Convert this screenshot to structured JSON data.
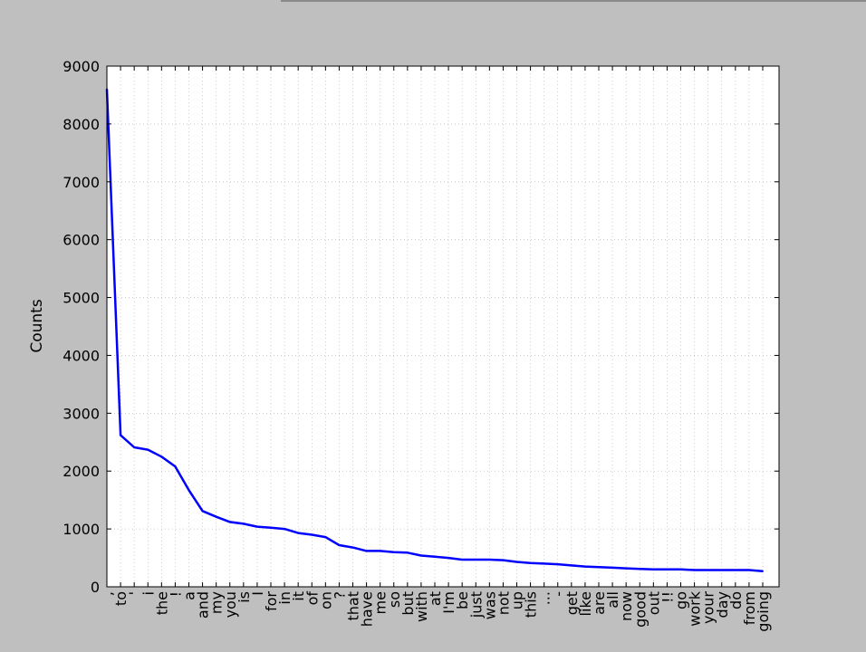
{
  "chart_data": {
    "type": "line",
    "title": "",
    "xlabel": "",
    "ylabel": "Counts",
    "ylim": [
      0,
      9000
    ],
    "yticks": [
      "0",
      "1000",
      "2000",
      "3000",
      "4000",
      "5000",
      "6000",
      "7000",
      "8000",
      "9000"
    ],
    "grid": true,
    "line_color": "#0000ff",
    "categories": [
      ",",
      "to",
      "'",
      "i",
      "the",
      "!",
      "a",
      "and",
      "my",
      "you",
      "is",
      "I",
      "for",
      "in",
      "it",
      "of",
      "on",
      "?",
      "that",
      "have",
      "me",
      "so",
      "but",
      "with",
      "at",
      "I'm",
      "be",
      "just",
      "was",
      "not",
      "up",
      "this",
      "...",
      "-",
      "get",
      "like",
      "are",
      "all",
      "now",
      "good",
      "out",
      "!!",
      "go",
      "work",
      "your",
      "day",
      "do",
      "from",
      "going"
    ],
    "values": [
      8600,
      2620,
      2410,
      2370,
      2250,
      2080,
      1670,
      1310,
      1210,
      1120,
      1090,
      1040,
      1020,
      1000,
      930,
      900,
      860,
      720,
      680,
      620,
      620,
      600,
      590,
      540,
      520,
      500,
      470,
      470,
      470,
      460,
      430,
      410,
      400,
      390,
      370,
      350,
      340,
      330,
      320,
      310,
      300,
      300,
      300,
      290,
      290,
      290,
      290,
      290,
      270
    ]
  }
}
